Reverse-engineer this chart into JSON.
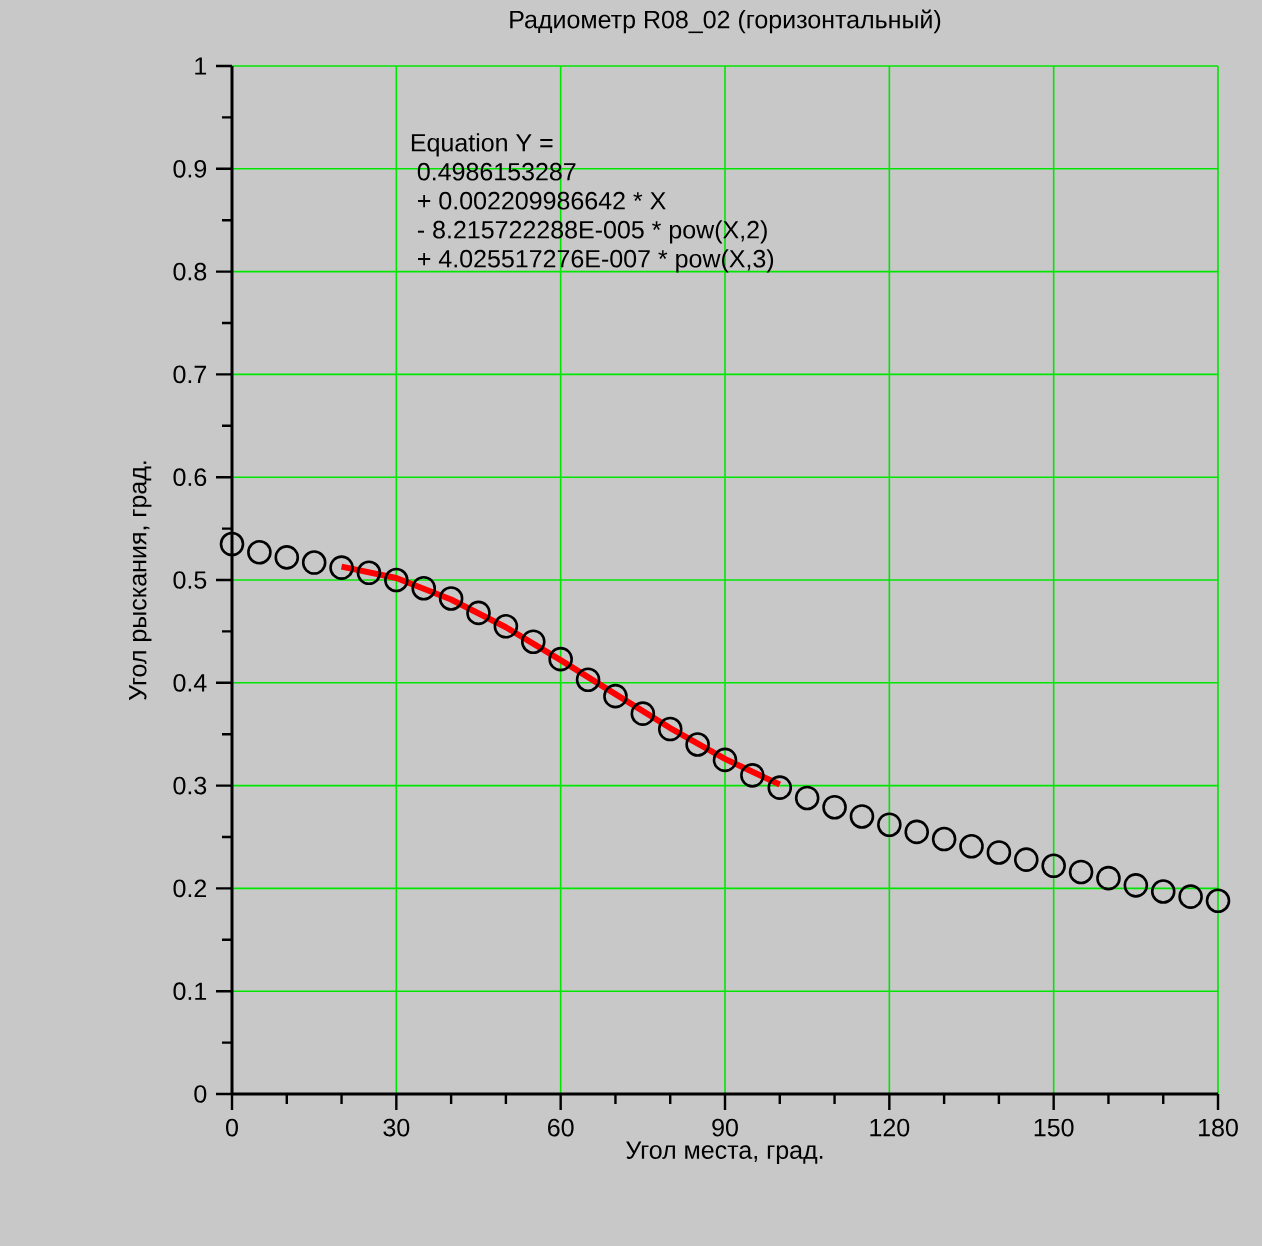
{
  "chart_data": {
    "type": "scatter",
    "title": "Радиометр R08_02 (горизонтальный)",
    "xlabel": "Угол места, град.",
    "ylabel": "Угол рыскания, град.",
    "annotations": [
      "Equation Y =",
      " 0.4986153287",
      " + 0.002209986642 * X",
      " - 8.215722288E-005 * pow(X,2)",
      " + 4.025517276E-007 * pow(X,3)"
    ],
    "xlim": [
      0,
      180
    ],
    "xticks": [
      0,
      30,
      60,
      90,
      120,
      150,
      180
    ],
    "ylim": [
      0,
      1
    ],
    "yticks": [
      0,
      0.1,
      0.2,
      0.3,
      0.4,
      0.5,
      0.6,
      0.7,
      0.8,
      0.9,
      1
    ],
    "grid": true,
    "series": [
      {
        "color": "#000000",
        "marker": "circle",
        "x": [
          0,
          5,
          10,
          15,
          20,
          25,
          30,
          35,
          40,
          45,
          50,
          55,
          60,
          65,
          70,
          75,
          80,
          85,
          90,
          95,
          100,
          105,
          110,
          115,
          120,
          125,
          130,
          135,
          140,
          145,
          150,
          155,
          160,
          165,
          170,
          175,
          180
        ],
        "values": [
          0.535,
          0.527,
          0.522,
          0.517,
          0.512,
          0.507,
          0.5,
          0.492,
          0.482,
          0.468,
          0.455,
          0.44,
          0.423,
          0.403,
          0.387,
          0.37,
          0.355,
          0.34,
          0.325,
          0.31,
          0.298,
          0.288,
          0.279,
          0.27,
          0.262,
          0.255,
          0.248,
          0.241,
          0.235,
          0.228,
          0.222,
          0.216,
          0.21,
          0.203,
          0.197,
          0.192,
          0.188
        ]
      },
      {
        "type": "line",
        "color": "#ff0000",
        "marker": "none",
        "x": [
          20,
          30,
          40,
          50,
          60,
          70,
          80,
          90,
          100
        ],
        "values": [
          0.513,
          0.502,
          0.481,
          0.454,
          0.422,
          0.389,
          0.356,
          0.326,
          0.301
        ]
      }
    ]
  }
}
